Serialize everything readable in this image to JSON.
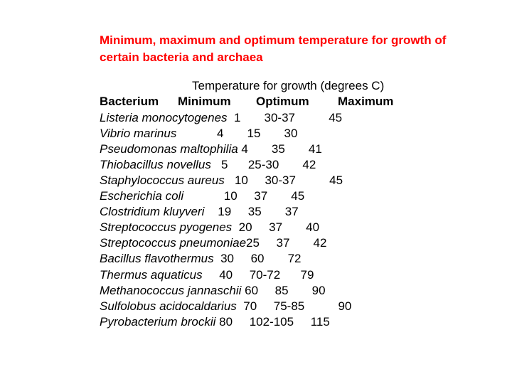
{
  "title": "Minimum, maximum and optimum temperature for growth of certain bacteria and archaea",
  "subtitle": "Temperature for growth (degrees C)",
  "headers": {
    "bacterium": "Bacterium",
    "minimum": "Minimum",
    "optimum": "Optimum",
    "maximum": "Maximum"
  },
  "rows": [
    {
      "org": "Listeria monocytogenes",
      "min": "1",
      "opt": "30-37",
      "max": "45",
      "pad_org": 2,
      "pad_min": 7,
      "pad_opt": 10
    },
    {
      "org": "Vibrio marinus",
      "min": "4",
      "opt": "15",
      "max": "30",
      "pad_org": 12,
      "pad_min": 7,
      "pad_opt": 7
    },
    {
      "org": "Pseudomonas maltophilia",
      "min": "4",
      "opt": "35",
      "max": "41",
      "pad_org": 1,
      "pad_min": 7,
      "pad_opt": 7
    },
    {
      "org": "Thiobacillus novellus",
      "min": "5",
      "opt": "25-30",
      "max": "42",
      "pad_org": 3,
      "pad_min": 6,
      "pad_opt": 7
    },
    {
      "org": "Staphylococcus aureus",
      "min": "10",
      "opt": "30-37",
      "max": "45",
      "pad_org": 3,
      "pad_min": 5,
      "pad_opt": 10
    },
    {
      "org": "Escherichia coli",
      "min": "10",
      "opt": "37",
      "max": "45",
      "pad_org": 12,
      "pad_min": 5,
      "pad_opt": 7
    },
    {
      "org": "Clostridium kluyveri",
      "min": "19",
      "opt": "35",
      "max": "37",
      "pad_org": 4,
      "pad_min": 5,
      "pad_opt": 7
    },
    {
      "org": "Streptococcus pyogenes",
      "min": "20",
      "opt": "37",
      "max": "40",
      "pad_org": 2,
      "pad_min": 5,
      "pad_opt": 7
    },
    {
      "org": "Streptococcus pneumoniae",
      "min": "25",
      "opt": "37",
      "max": "42",
      "pad_org": 0,
      "pad_min": 5,
      "pad_opt": 7
    },
    {
      "org": "Bacillus flavothermus",
      "min": "30",
      "opt": "60",
      "max": "72",
      "pad_org": 2,
      "pad_min": 5,
      "pad_opt": 7
    },
    {
      "org": "Thermus aquaticus",
      "min": "40",
      "opt": "70-72",
      "max": "79",
      "pad_org": 5,
      "pad_min": 5,
      "pad_opt": 6
    },
    {
      "org": "Methanococcus jannaschii",
      "min": "60",
      "opt": "85",
      "max": "90",
      "pad_org": 1,
      "pad_min": 5,
      "pad_opt": 7
    },
    {
      "org": "Sulfolobus acidocaldarius",
      "min": "70",
      "opt": "75-85",
      "max": "90",
      "pad_org": 2,
      "pad_min": 5,
      "pad_opt": 10
    },
    {
      "org": "Pyrobacterium brockii",
      "min": "80",
      "opt": "102-105",
      "max": "115",
      "pad_org": 1,
      "pad_min": 5,
      "pad_opt": 5
    }
  ],
  "colors": {
    "title": "#ff0000",
    "text": "#000000",
    "background": "#ffffff"
  }
}
